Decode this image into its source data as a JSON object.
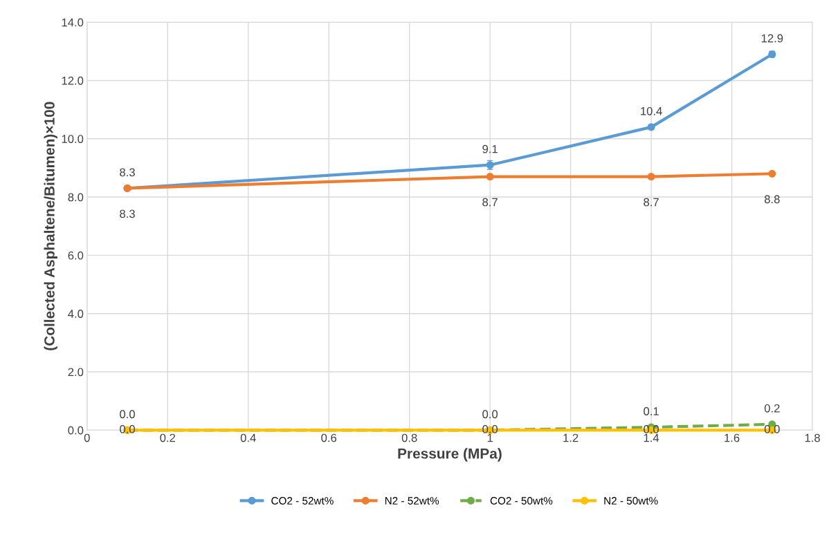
{
  "chart_data": {
    "type": "line",
    "xlabel": "Pressure (MPa)",
    "ylabel": "(Collected Asphaltene/Bitumen)×100",
    "x": [
      0.1,
      1,
      1.4,
      1.7
    ],
    "series": [
      {
        "name": "CO2 - 52wt%",
        "color": "#5b9bd5",
        "values": [
          8.3,
          9.1,
          10.4,
          12.9
        ],
        "errors": [
          null,
          0.15,
          0.08,
          0.1
        ],
        "value_labels": [
          "8.3",
          "9.1",
          "10.4",
          "12.9"
        ]
      },
      {
        "name": "N2 - 52wt%",
        "color": "#ed7d31",
        "values": [
          8.3,
          8.7,
          8.7,
          8.8
        ],
        "value_labels": [
          "8.3",
          "8.7",
          "8.7",
          "8.8"
        ]
      },
      {
        "name": "CO2 - 50wt%",
        "color": "#70ad47",
        "values": [
          0.0,
          0.0,
          0.1,
          0.2
        ],
        "line_style": "dashed",
        "value_labels": [
          "0.0",
          "0.0",
          "0.1",
          "0.2"
        ]
      },
      {
        "name": "N2 - 50wt%",
        "color": "#ffc000",
        "values": [
          0.0,
          0.0,
          0.0,
          0.0
        ],
        "value_labels": [
          "0.0",
          "0.0",
          "0.0",
          "0.0"
        ]
      }
    ],
    "xlim": [
      0,
      1.8
    ],
    "xticks": [
      0,
      0.2,
      0.4,
      0.6,
      0.8,
      1,
      1.2,
      1.4,
      1.6,
      1.8
    ],
    "ylim": [
      0,
      14
    ],
    "yticks": [
      {
        "value": 0,
        "label": "0.0"
      },
      {
        "value": 2,
        "label": "2.0"
      },
      {
        "value": 4,
        "label": "4.0"
      },
      {
        "value": 6,
        "label": "6.0"
      },
      {
        "value": 8,
        "label": "8.0"
      },
      {
        "value": 10,
        "label": "10.0"
      },
      {
        "value": 12,
        "label": "12.0"
      },
      {
        "value": 14,
        "label": "14.0"
      }
    ],
    "grid": true,
    "legend": "bottom",
    "marker": "circle"
  }
}
